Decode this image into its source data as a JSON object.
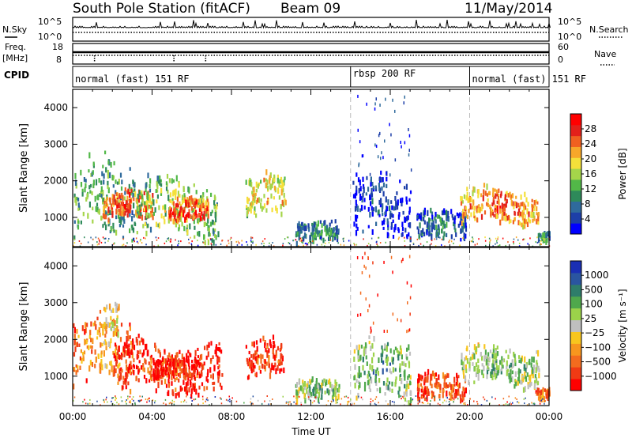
{
  "header": {
    "title": "South Pole Station (fitACF)",
    "beam": "Beam 09",
    "date": "11/May/2014"
  },
  "top_panels": {
    "nsky_label": "N.Sky",
    "nsky_ticks": [
      "10^5",
      "10^0"
    ],
    "nsearch_label": "N.Search",
    "nsearch_ticks": [
      "10^5",
      "10^0"
    ],
    "freq_label_1": "Freq.",
    "freq_label_2": "[MHz]",
    "freq_ticks": [
      "18",
      "8"
    ],
    "nave_label": "Nave",
    "nave_ticks": [
      "60",
      "0"
    ],
    "cpid_label": "CPID",
    "cpid_segments": [
      {
        "label": "normal (fast) 151 RF",
        "start_h": 0,
        "end_h": 14
      },
      {
        "label": "rbsp 200 RF",
        "start_h": 14,
        "end_h": 20
      },
      {
        "label": "normal (fast) 151 RF",
        "start_h": 20,
        "end_h": 24
      }
    ]
  },
  "chart_data": [
    {
      "type": "heatmap",
      "panel": "power",
      "xlabel": "",
      "ylabel": "Slant Range [km]",
      "xlim": [
        0,
        24
      ],
      "ylim": [
        200,
        4500
      ],
      "yticks": [
        "1000",
        "2000",
        "3000",
        "4000"
      ],
      "colorbar_label": "Power [dB]",
      "colorbar_ticks": [
        "28",
        "24",
        "20",
        "16",
        "12",
        "8",
        "4"
      ],
      "colorscale": [
        "#0000ff",
        "#1d3fa8",
        "#2f6a9c",
        "#2e8a5a",
        "#52b848",
        "#a5d54a",
        "#f4e03a",
        "#f7a72a",
        "#f06020",
        "#e3201a",
        "#ff0000"
      ],
      "regions": [
        {
          "t0": 0.0,
          "t1": 3.2,
          "r0": 300,
          "r1": 2600,
          "level": 0.45
        },
        {
          "t0": 1.5,
          "t1": 4.0,
          "r0": 900,
          "r1": 1700,
          "level": 0.9
        },
        {
          "t0": 3.2,
          "t1": 7.3,
          "r0": 400,
          "r1": 2100,
          "level": 0.55
        },
        {
          "t0": 4.8,
          "t1": 6.8,
          "r0": 800,
          "r1": 1500,
          "level": 0.95
        },
        {
          "t0": 8.7,
          "t1": 10.7,
          "r0": 900,
          "r1": 2200,
          "level": 0.7
        },
        {
          "t0": 11.2,
          "t1": 13.4,
          "r0": 300,
          "r1": 900,
          "level": 0.35
        },
        {
          "t0": 14.1,
          "t1": 17.0,
          "r0": 300,
          "r1": 2200,
          "level": 0.15
        },
        {
          "t0": 17.3,
          "t1": 19.8,
          "r0": 300,
          "r1": 1200,
          "level": 0.3
        },
        {
          "t0": 19.5,
          "t1": 23.5,
          "r0": 800,
          "r1": 1800,
          "level": 0.85
        },
        {
          "t0": 23.4,
          "t1": 24.0,
          "r0": 300,
          "r1": 600,
          "level": 0.4
        }
      ]
    },
    {
      "type": "heatmap",
      "panel": "velocity",
      "xlabel": "Time UT",
      "ylabel": "Slant Range [km]",
      "xlim": [
        0,
        24
      ],
      "ylim": [
        200,
        4500
      ],
      "xticks": [
        "00:00",
        "04:00",
        "08:00",
        "12:00",
        "16:00",
        "20:00",
        "00:00"
      ],
      "yticks": [
        "1000",
        "2000",
        "3000",
        "4000"
      ],
      "colorbar_label": "Velocity [m s⁻¹]",
      "colorbar_ticks": [
        "1000",
        "500",
        "100",
        "25",
        "−25",
        "−100",
        "−500",
        "−1000"
      ],
      "colorscale": [
        "#ff0000",
        "#f03a14",
        "#f36b1e",
        "#f7961e",
        "#f8c61e",
        "#bfbfbf",
        "#9bd24a",
        "#4fa84c",
        "#2e7d6a",
        "#2a55a0",
        "#1a2fb4"
      ],
      "regions": [
        {
          "t0": 0.0,
          "t1": 3.0,
          "r0": 600,
          "r1": 2600,
          "level": 0.35
        },
        {
          "t0": 1.5,
          "t1": 2.3,
          "r0": 1700,
          "r1": 3000,
          "level": 0.55
        },
        {
          "t0": 2.0,
          "t1": 7.5,
          "r0": 500,
          "r1": 2000,
          "level": 0.2
        },
        {
          "t0": 4.0,
          "t1": 6.5,
          "r0": 900,
          "r1": 1500,
          "level": 0.15
        },
        {
          "t0": 8.7,
          "t1": 10.6,
          "r0": 900,
          "r1": 2000,
          "level": 0.2
        },
        {
          "t0": 11.2,
          "t1": 13.4,
          "r0": 300,
          "r1": 900,
          "level": 0.7
        },
        {
          "t0": 14.1,
          "t1": 17.0,
          "r0": 300,
          "r1": 2000,
          "level": 0.75
        },
        {
          "t0": 17.3,
          "t1": 19.8,
          "r0": 300,
          "r1": 1100,
          "level": 0.25
        },
        {
          "t0": 19.5,
          "t1": 23.5,
          "r0": 700,
          "r1": 1800,
          "level": 0.7
        },
        {
          "t0": 23.3,
          "t1": 24.0,
          "r0": 300,
          "r1": 700,
          "level": 0.3
        }
      ]
    }
  ]
}
